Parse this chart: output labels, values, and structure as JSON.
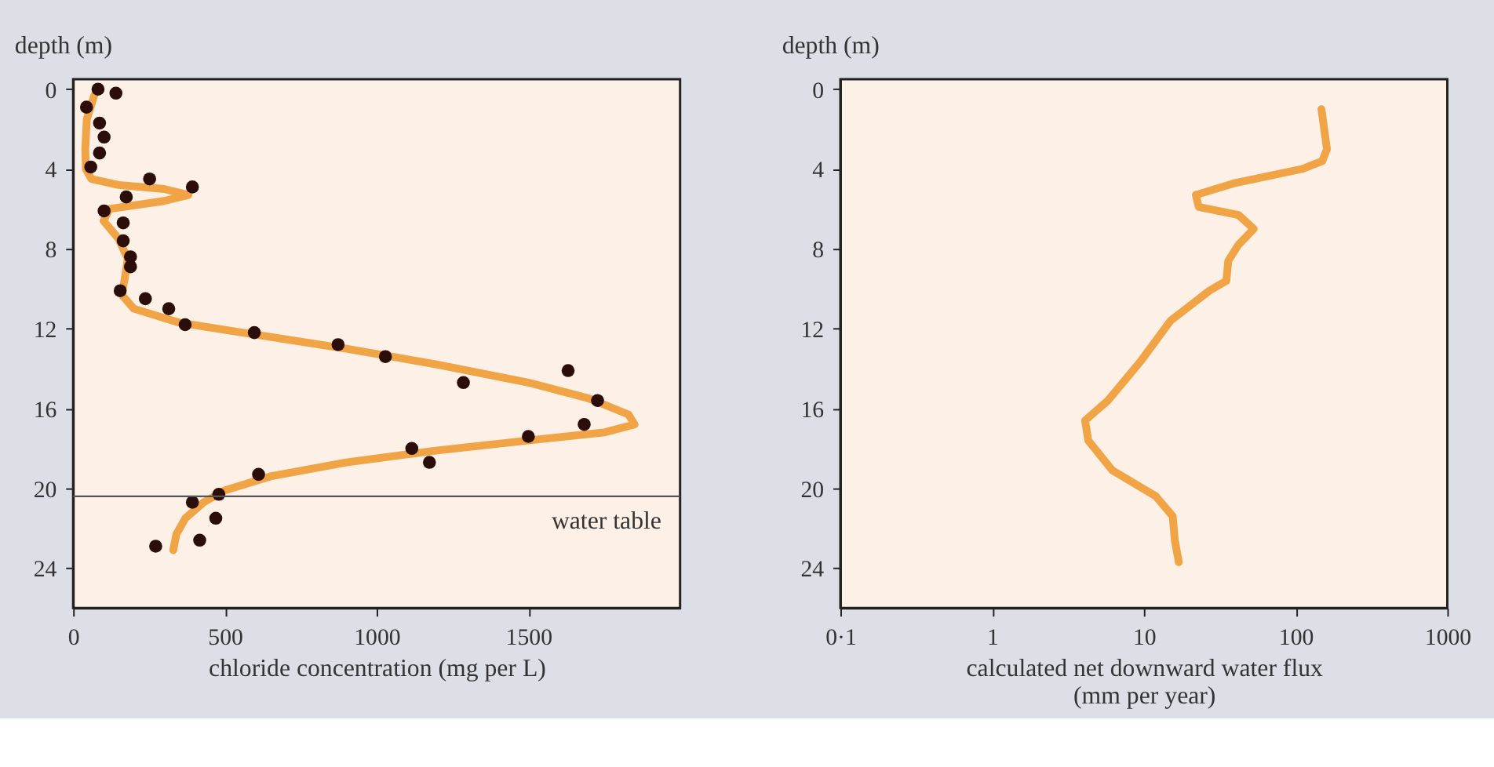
{
  "chart_data": [
    {
      "type": "scatter",
      "xlabel": "chloride concentration (mg per L)",
      "ylabel": "depth (m)",
      "xlim": [
        0,
        2000
      ],
      "ylim": [
        26,
        -0.5
      ],
      "xticks": [
        0,
        500,
        1000,
        1500
      ],
      "yticks": [
        0,
        4,
        8,
        12,
        16,
        20,
        24
      ],
      "grid": false,
      "series": [
        {
          "type": "line",
          "color": "#f0a445",
          "marker": "none",
          "line_style": "solid",
          "x": [
            70,
            45,
            40,
            42,
            60,
            150,
            300,
            380,
            300,
            120,
            100,
            150,
            180,
            170,
            160,
            200,
            350,
            600,
            900,
            1200,
            1500,
            1700,
            1830,
            1850,
            1750,
            1500,
            1200,
            900,
            650,
            500,
            430,
            370,
            340,
            330
          ],
          "values": [
            0.3,
            1.5,
            3,
            4,
            4.5,
            4.8,
            5.0,
            5.3,
            5.6,
            6.0,
            6.6,
            7.5,
            8.5,
            9.5,
            10.3,
            11.0,
            11.7,
            12.3,
            13.0,
            13.8,
            14.7,
            15.5,
            16.3,
            16.8,
            17.2,
            17.6,
            18.1,
            18.7,
            19.4,
            20.1,
            20.7,
            21.5,
            22.3,
            23.1
          ]
        },
        {
          "color": "#2b0d0a",
          "marker": "circle",
          "x": [
            82,
            141,
            44,
            87,
            102,
            87,
            58,
            252,
            393,
            175,
            102,
            165,
            165,
            189,
            189,
            155,
            238,
            315,
            369,
            597,
            873,
            1029,
            1631,
            1286,
            1728,
            1684,
            1500,
            1116,
            1174,
            611,
            480,
            393,
            470,
            417,
            272
          ],
          "values": [
            0.0,
            0.2,
            0.9,
            1.7,
            2.4,
            3.2,
            3.9,
            4.5,
            4.9,
            5.4,
            6.1,
            6.7,
            7.6,
            8.4,
            8.9,
            10.1,
            10.5,
            11.0,
            11.8,
            12.2,
            12.8,
            13.4,
            14.1,
            14.7,
            15.6,
            16.8,
            17.4,
            18.0,
            18.7,
            19.3,
            20.3,
            20.7,
            21.5,
            22.6,
            22.9
          ]
        }
      ],
      "ref_lines": [
        {
          "axis": "y",
          "value": 20.4,
          "label": "water table",
          "color": "#555555"
        }
      ]
    },
    {
      "type": "line",
      "xlabel": "calculated net downward water flux\n(mm per year)",
      "ylabel": "depth (m)",
      "log": "x",
      "xlim": [
        0.1,
        1000
      ],
      "ylim": [
        26,
        -0.5
      ],
      "xticks": [
        {
          "value": 0.1,
          "label": "0·1"
        },
        1,
        10,
        100,
        1000
      ],
      "yticks": [
        0,
        4,
        8,
        12,
        16,
        20,
        24
      ],
      "grid": false,
      "series": [
        {
          "color": "#f0a445",
          "marker": "none",
          "line_style": "solid",
          "x": [
            148,
            161,
            150,
            110,
            40,
            22,
            23,
            42,
            53,
            42,
            36,
            35,
            27,
            15,
            9.6,
            5.8,
            4.1,
            4.3,
            6.2,
            12,
            15.5,
            16,
            17
          ],
          "values": [
            1.0,
            3.0,
            3.6,
            4.0,
            4.7,
            5.3,
            5.9,
            6.3,
            7.0,
            7.8,
            8.6,
            9.6,
            10.1,
            11.6,
            13.6,
            15.6,
            16.6,
            17.6,
            19.1,
            20.4,
            21.4,
            22.6,
            23.7
          ]
        }
      ]
    }
  ]
}
